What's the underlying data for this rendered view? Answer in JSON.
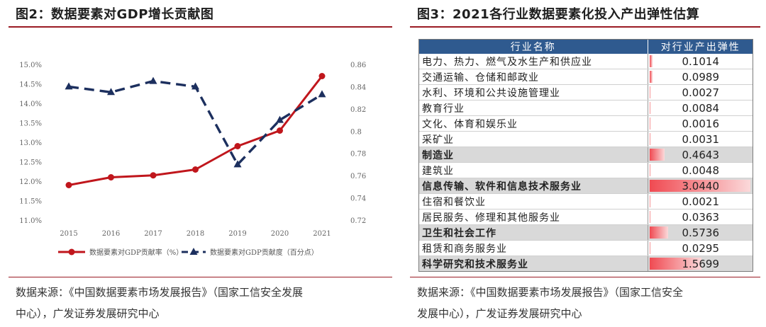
{
  "left_panel": {
    "title": "图2：数据要素对GDP增长贡献图",
    "source_line1": "数据来源：《中国数据要素市场发展报告》（国家工信安全发展",
    "source_line2": "中心），广发证券发展研究中心"
  },
  "right_panel": {
    "title": "图3：2021各行业数据要素化投入产出弹性估算",
    "source_line1": "数据来源：《中国数据要素市场发展报告》（国家工信安全",
    "source_line2": "发展中心），广发证券发展研究中心"
  },
  "chart_data": [
    {
      "type": "line",
      "title": "数据要素对GDP增长贡献图",
      "x": [
        "2015",
        "2016",
        "2017",
        "2018",
        "2019",
        "2020",
        "2021"
      ],
      "series": [
        {
          "name": "数据要素对GDP贡献率（%）",
          "axis": "left",
          "color": "#c0161c",
          "style": "solid-marker",
          "values": [
            11.9,
            12.1,
            12.15,
            12.3,
            12.9,
            13.3,
            14.7
          ]
        },
        {
          "name": "数据要素对GDP贡献度（百分点）",
          "axis": "right",
          "color": "#1c2f5e",
          "style": "dashed-triangle",
          "values": [
            0.84,
            0.835,
            0.845,
            0.84,
            0.77,
            0.81,
            0.833
          ]
        }
      ],
      "y_left": {
        "range": [
          11.0,
          15.0
        ],
        "ticks": [
          "11.0%",
          "11.5%",
          "12.0%",
          "12.5%",
          "13.0%",
          "13.5%",
          "14.0%",
          "14.5%",
          "15.0%"
        ]
      },
      "y_right": {
        "range": [
          0.72,
          0.86
        ],
        "ticks": [
          "0.72",
          "0.74",
          "0.76",
          "0.78",
          "0.8",
          "0.82",
          "0.84",
          "0.86"
        ]
      },
      "legend_position": "bottom"
    },
    {
      "type": "table",
      "title": "2021各行业数据要素化投入产出弹性估算",
      "headers": [
        "行业名称",
        "对行业产出弹性"
      ],
      "max_value": 3.044,
      "rows": [
        {
          "name": "电力、热力、燃气及水生产和供应业",
          "value": 0.1014,
          "text": "0.1014",
          "highlight": false
        },
        {
          "name": "交通运输、仓储和邮政业",
          "value": 0.0989,
          "text": "0.0989",
          "highlight": false
        },
        {
          "name": "水利、环境和公共设施管理业",
          "value": 0.0027,
          "text": "0.0027",
          "highlight": false
        },
        {
          "name": "教育行业",
          "value": 0.0084,
          "text": "0.0084",
          "highlight": false
        },
        {
          "name": "文化、体育和娱乐业",
          "value": 0.0016,
          "text": "0.0016",
          "highlight": false
        },
        {
          "name": "采矿业",
          "value": 0.0031,
          "text": "0.0031",
          "highlight": false
        },
        {
          "name": "制造业",
          "value": 0.4643,
          "text": "0.4643",
          "highlight": true
        },
        {
          "name": "建筑业",
          "value": 0.0048,
          "text": "0.0048",
          "highlight": false
        },
        {
          "name": "信息传输、软件和信息技术服务业",
          "value": 3.044,
          "text": "3.0440",
          "highlight": true
        },
        {
          "name": "住宿和餐饮业",
          "value": 0.0021,
          "text": "0.0021",
          "highlight": false
        },
        {
          "name": "居民服务、修理和其他服务业",
          "value": 0.0363,
          "text": "0.0363",
          "highlight": false
        },
        {
          "name": "卫生和社会工作",
          "value": 0.5736,
          "text": "0.5736",
          "highlight": true
        },
        {
          "name": "租赁和商务服务业",
          "value": 0.0295,
          "text": "0.0295",
          "highlight": false
        },
        {
          "name": "科学研究和技术服务业",
          "value": 1.5699,
          "text": "1.5699",
          "highlight": true
        }
      ]
    }
  ]
}
